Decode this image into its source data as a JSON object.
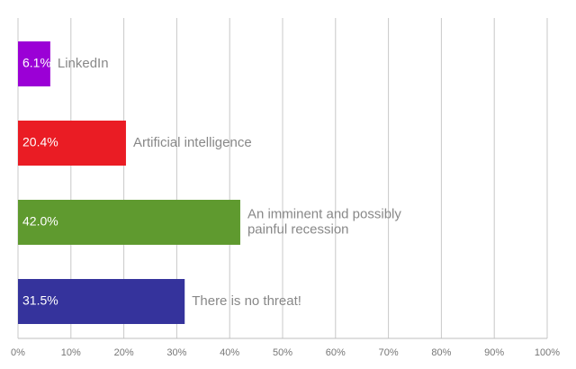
{
  "chart_data": {
    "type": "bar",
    "orientation": "horizontal",
    "categories": [
      "LinkedIn",
      "Artificial intelligence",
      "An imminent and possibly painful recession",
      "There is no threat!"
    ],
    "values": [
      6.1,
      20.4,
      42.0,
      31.5
    ],
    "value_labels": [
      "6.1%",
      "20.4%",
      "42.0%",
      "31.5%"
    ],
    "colors": [
      "#9b00d6",
      "#ea1c24",
      "#5f9a2f",
      "#35339c"
    ],
    "title": "",
    "xlabel": "",
    "ylabel": "",
    "xlim": [
      0,
      100
    ],
    "x_ticks": [
      "0%",
      "10%",
      "20%",
      "30%",
      "40%",
      "50%",
      "60%",
      "70%",
      "80%",
      "90%",
      "100%"
    ],
    "grid": true,
    "legend": "none"
  }
}
